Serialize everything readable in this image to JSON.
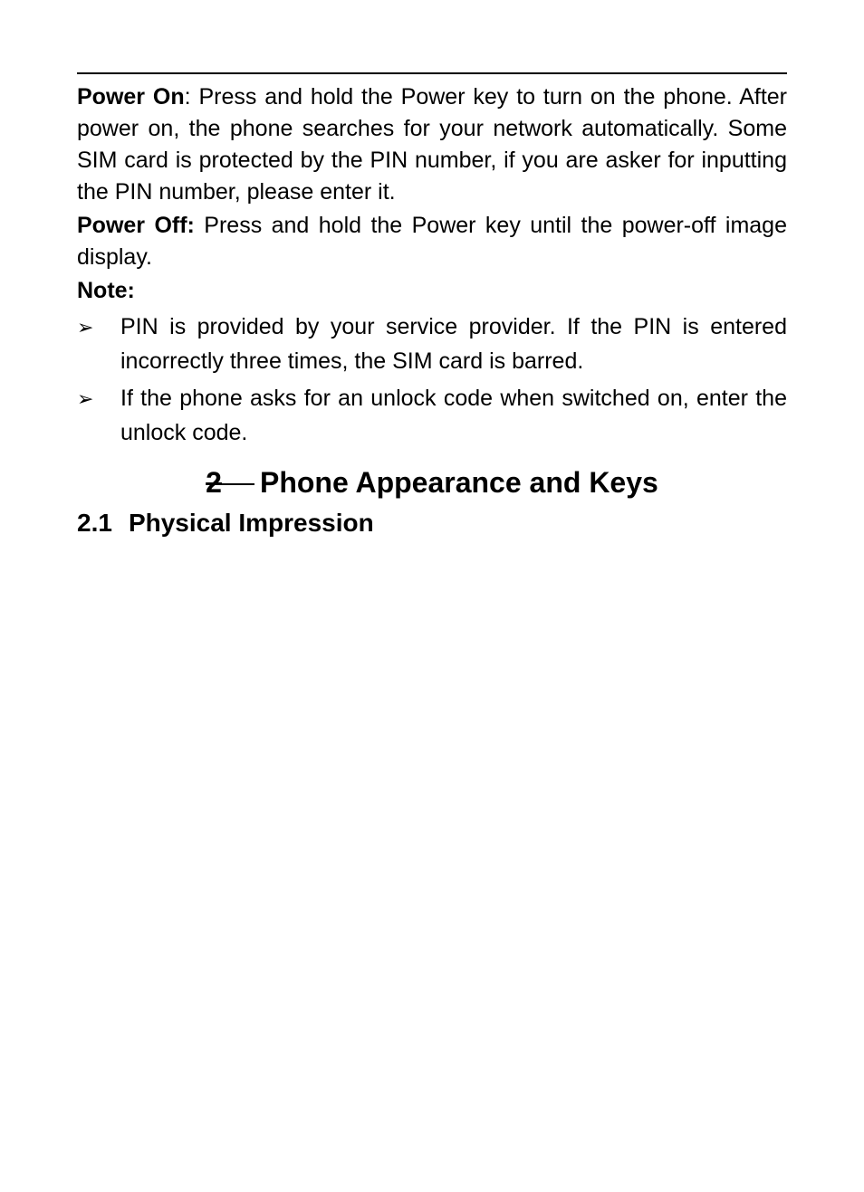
{
  "document": {
    "background_color": "#ffffff",
    "text_color": "#000000",
    "body_fontsize": 25,
    "heading_fontsize": 32,
    "section_fontsize": 28,
    "font_family": "Arial",
    "paragraphs": {
      "power_on_label": "Power On",
      "power_on_text": ": Press and hold the Power key to turn on the phone. After power on, the phone searches for your network automatically. Some SIM card is protected by the PIN number, if you are asker for inputting the PIN number, please enter it.",
      "power_off_label": "Power Off:",
      "power_off_text": " Press and hold the Power key until the power-off image display.",
      "note_label": "Note:"
    },
    "bullets": [
      {
        "marker": "➢",
        "text": "PIN is provided by your service provider. If the PIN is entered incorrectly three times, the SIM card is barred."
      },
      {
        "marker": "➢",
        "text": "If the phone asks for an unlock code when switched on, enter the unlock code."
      }
    ],
    "chapter": {
      "number": "2",
      "title": "Phone Appearance and Keys"
    },
    "section": {
      "number": "2.1",
      "title": "Physical Impression"
    }
  }
}
